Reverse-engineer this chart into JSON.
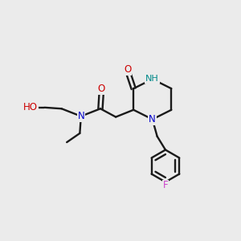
{
  "background_color": "#ebebeb",
  "bond_color": "#1a1a1a",
  "fig_width": 3.0,
  "fig_height": 3.0,
  "dpi": 100,
  "colors": {
    "N": "#0000cc",
    "NH": "#008888",
    "O": "#cc0000",
    "F": "#cc44cc",
    "bond": "#1a1a1a"
  }
}
